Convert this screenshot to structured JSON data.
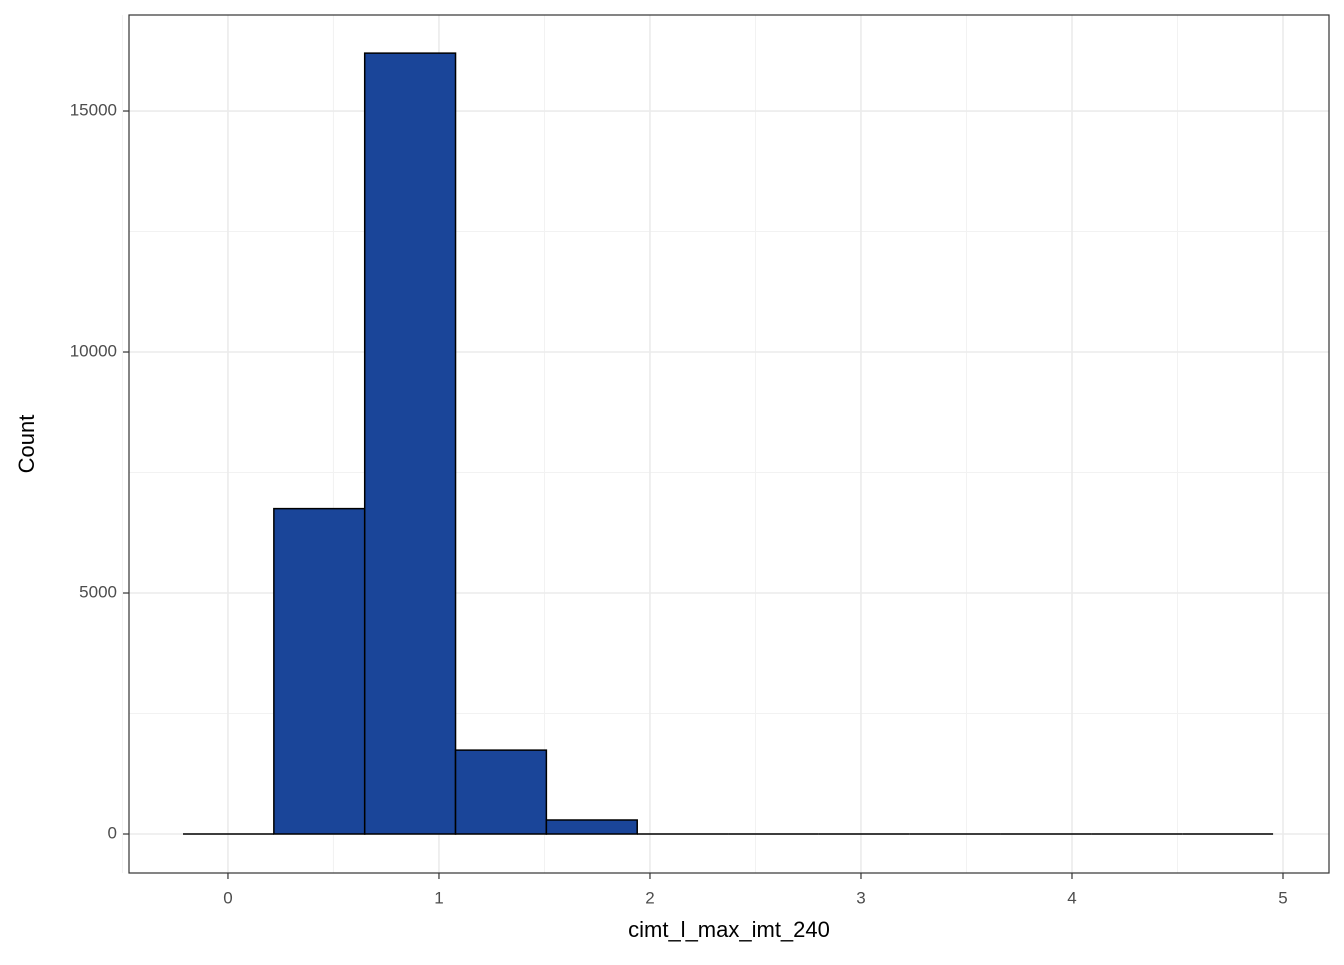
{
  "chart_data": {
    "type": "histogram",
    "x_label": "cimt_l_max_imt_240",
    "y_label": "Count",
    "bins": [
      -0.213,
      0.2175,
      0.648,
      1.0785,
      1.509,
      1.9395,
      2.37,
      2.8005,
      3.231,
      3.6615,
      4.092,
      4.5225,
      4.953
    ],
    "counts": [
      0,
      6750,
      16200,
      1740,
      290,
      0,
      0,
      0,
      0,
      0,
      0,
      0
    ],
    "color": "#1a4599",
    "edge_color": "#000000",
    "xlim": [
      -0.469,
      5.218
    ],
    "ylim": [
      -809,
      16992
    ],
    "xticks": [
      0,
      1,
      2,
      3,
      4,
      5
    ],
    "yticks": [
      0,
      5000,
      10000,
      15000
    ],
    "x_minor_ticks": [
      -0.5,
      0.5,
      1.5,
      2.5,
      3.5,
      4.5
    ],
    "y_minor_ticks": [
      2500,
      7500,
      12500
    ],
    "grid": true
  }
}
